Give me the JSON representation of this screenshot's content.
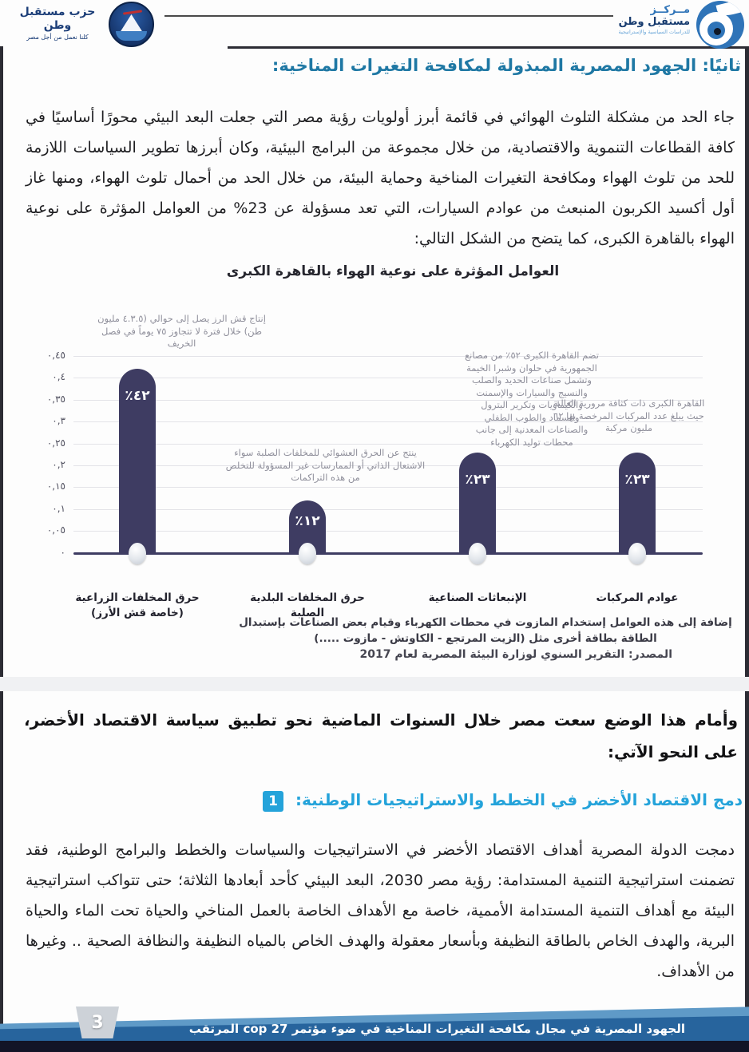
{
  "header": {
    "party_logo": {
      "title": "حزب مستقبل وطن",
      "tagline": "كلنا نعمل من أجل مصر"
    },
    "center_logo": {
      "word1": "مــركــز",
      "word2": "مستقبل وطن",
      "tagline": "للدراسات السياسية والإستراتيجية"
    }
  },
  "section2": {
    "heading": "ثانيًا: الجهود المصرية المبذولة لمكافحة التغيرات المناخية:",
    "paragraph": "جاء الحد من مشكلة التلوث الهوائي في قائمة أبرز أولويات رؤية مصر التي جعلت البعد البيئي محورًا أساسيًا في كافة القطاعات التنموية والاقتصادية، من خلال مجموعة من البرامج البيئية، وكان أبرزها تطوير السياسات اللازمة للحد من تلوث الهواء ومكافحة التغيرات المناخية وحماية البيئة، من خلال الحد من أحمال تلوث الهواء، ومنها غاز أول أكسيد الكربون المنبعث من عوادم السيارات، التي تعد مسؤولة عن 23% من العوامل المؤثرة على نوعية الهواء بالقاهرة الكبرى، كما يتضح من الشكل التالي:"
  },
  "chart_data": {
    "type": "bar",
    "title": "العوامل المؤثرة على نوعية الهواء بالقاهرة الكبرى",
    "categories": [
      "حرق المخلفات الزراعية (خاصة قش الأرز)",
      "حرق المخلفات البلدية الصلبة",
      "الإنبعاثات الصناعية",
      "عوادم المركبات"
    ],
    "values": [
      0.42,
      0.12,
      0.23,
      0.23
    ],
    "bar_labels": [
      "٤٢٪",
      "١٢٪",
      "٢٣٪",
      "٢٣٪"
    ],
    "ylim": [
      0,
      0.45
    ],
    "ytick_labels_top_to_bottom": [
      "٠,٤٥",
      "٠,٤",
      "٠,٣٥",
      "٠,٣",
      "٠,٢٥",
      "٠,٢",
      "٠,١٥",
      "٠,١",
      "٠,٠٥",
      "٠"
    ],
    "grid": true,
    "legend": "none",
    "bar_color": "#3e3c62",
    "annotations": [
      {
        "bar": "حرق المخلفات الزراعية (خاصة قش الأرز)",
        "text": "إنتاج قش الرز يصل إلى حوالي (٤.٣.٥ مليون طن) خلال فترة لا تتجاوز ٧٥ يوماً في فصل الخريف"
      },
      {
        "bar": "حرق المخلفات البلدية الصلبة",
        "text": "ينتج عن الحرق العشوائي للمخلفات الصلبة سواء الاشتعال الذاتي أو الممارسات غير المسؤولة للتخلص من هذه التراكمات"
      },
      {
        "bar": "الإنبعاثات الصناعية",
        "text": "تضم القاهرة الكبرى ٥٢٪ من مصانع الجمهورية في حلوان وشبرا الخيمة وتشمل صناعات الحديد والصلب والنسيج والسيارات والإسمنت والكيماويات وتكرير البترول والسماد والطوب الطفلي والصناعات المعدنية إلى جانب محطات توليد الكهرباء"
      },
      {
        "bar": "عوادم المركبات",
        "text": "القاهرة الكبرى ذات كثافة مرورية العالية حيث يبلغ عدد المركبات المرخصة بها ٦٢ مليون مركبة"
      }
    ],
    "note": "إضافة إلى هذه العوامل إستخدام المازوت في محطات الكهرباء وقيام بعض الصناعات بإستبدال الطاقة بطاقة أخرى مثل (الزيت المرتجع - الكاوتش - مازوت .....)",
    "source": "المصدر: التقرير السنوي لوزارة البيئة المصرية لعام 2017"
  },
  "transition_paragraph": "وأمام هذا الوضع سعت مصر خلال السنوات الماضية نحو تطبيق سياسة الاقتصاد الأخضر، على النحو الآتي:",
  "point1": {
    "number": "1",
    "heading": "دمج الاقتصاد الأخضر في الخطط والاستراتيجيات الوطنية:",
    "paragraph": "دمجت الدولة المصرية أهداف الاقتصاد الأخضر في الاستراتيجيات والسياسات والخطط والبرامج الوطنية، فقد تضمنت استراتيجية التنمية المستدامة: رؤية مصر 2030، البعد البيئي كأحد أبعادها الثلاثة؛ حتى تتواكب استراتيجية البيئة مع أهداف التنمية المستدامة الأممية، خاصة مع الأهداف الخاصة بالعمل المناخي والحياة تحت الماء والحياة البرية، والهدف الخاص بالطاقة النظيفة وبأسعار معقولة والهدف الخاص بالمياه النظيفة والنظافة الصحية .. وغيرها من الأهداف."
  },
  "footer": {
    "page_number": "3",
    "text": "الجهود المصرية في مجال مكافحة التغيرات المناخية في ضوء مؤتمر cop 27 المرتقب"
  },
  "colors": {
    "heading_teal_blue": "#1f78a4",
    "heading_bright_blue": "#24a3da",
    "bar_navy": "#3e3c62",
    "footer_light_blue": "#5f9ac7",
    "footer_dark_blue": "#27649d",
    "footer_bottom_strip": "#121427",
    "body_text": "#1f1f22"
  }
}
